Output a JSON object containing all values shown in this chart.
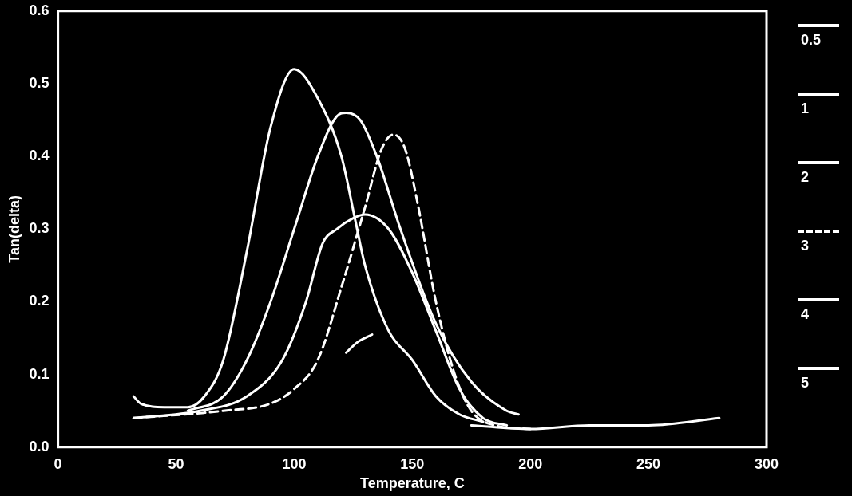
{
  "chart_data": {
    "type": "line",
    "xlabel": "Temperature, C",
    "ylabel": "Tan(delta)",
    "xlim": [
      0,
      300
    ],
    "xticks": [
      0,
      50,
      100,
      150,
      200,
      250,
      300
    ],
    "ylim": [
      0,
      0.6
    ],
    "yticks": [
      {
        "value": 0,
        "label": "0.0"
      },
      0.1,
      0.2,
      0.3,
      0.4,
      0.5,
      0.6
    ],
    "grid": false,
    "legend": "right",
    "marker": "none",
    "series": [
      {
        "name": "0.5",
        "color": "#ffffff",
        "line_style": "solid",
        "x": [
          32,
          35,
          45,
          55,
          62,
          70,
          80,
          90,
          100,
          110,
          120,
          126,
          130,
          140,
          150,
          160,
          170,
          180
        ],
        "values": [
          0.07,
          0.06,
          0.055,
          0.055,
          0.07,
          0.12,
          0.27,
          0.44,
          0.52,
          0.48,
          0.4,
          0.31,
          0.25,
          0.16,
          0.12,
          0.07,
          0.045,
          0.035
        ]
      },
      {
        "name": "1",
        "color": "#ffffff",
        "line_style": "solid",
        "x": [
          55,
          70,
          80,
          90,
          100,
          110,
          118,
          122,
          128,
          135,
          145,
          160,
          175,
          190,
          195
        ],
        "values": [
          0.05,
          0.07,
          0.12,
          0.2,
          0.3,
          0.4,
          0.455,
          0.46,
          0.45,
          0.4,
          0.3,
          0.17,
          0.09,
          0.05,
          0.045
        ]
      },
      {
        "name": "2",
        "color": "#ffffff",
        "line_style": "solid",
        "x": [
          32,
          60,
          80,
          95,
          105,
          112,
          118,
          125,
          130,
          140,
          150,
          160,
          170,
          180,
          190
        ],
        "values": [
          0.04,
          0.05,
          0.07,
          0.12,
          0.2,
          0.28,
          0.3,
          0.315,
          0.32,
          0.3,
          0.24,
          0.16,
          0.08,
          0.04,
          0.03
        ]
      },
      {
        "name": "3",
        "color": "#ffffff",
        "line_style": "dashed",
        "x": [
          32,
          70,
          90,
          100,
          110,
          120,
          130,
          137,
          142,
          147,
          152,
          160,
          168,
          175,
          185,
          200
        ],
        "values": [
          0.04,
          0.05,
          0.06,
          0.08,
          0.12,
          0.22,
          0.33,
          0.41,
          0.43,
          0.41,
          0.34,
          0.2,
          0.1,
          0.05,
          0.03,
          0.025
        ]
      },
      {
        "name": "4",
        "color": "#ffffff",
        "line_style": "solid",
        "x": [
          122,
          127,
          133
        ],
        "values": [
          0.13,
          0.145,
          0.155
        ]
      },
      {
        "name": "5",
        "color": "#ffffff",
        "line_style": "solid",
        "x": [
          175,
          200,
          225,
          250,
          280
        ],
        "values": [
          0.03,
          0.025,
          0.03,
          0.03,
          0.04
        ]
      }
    ]
  }
}
